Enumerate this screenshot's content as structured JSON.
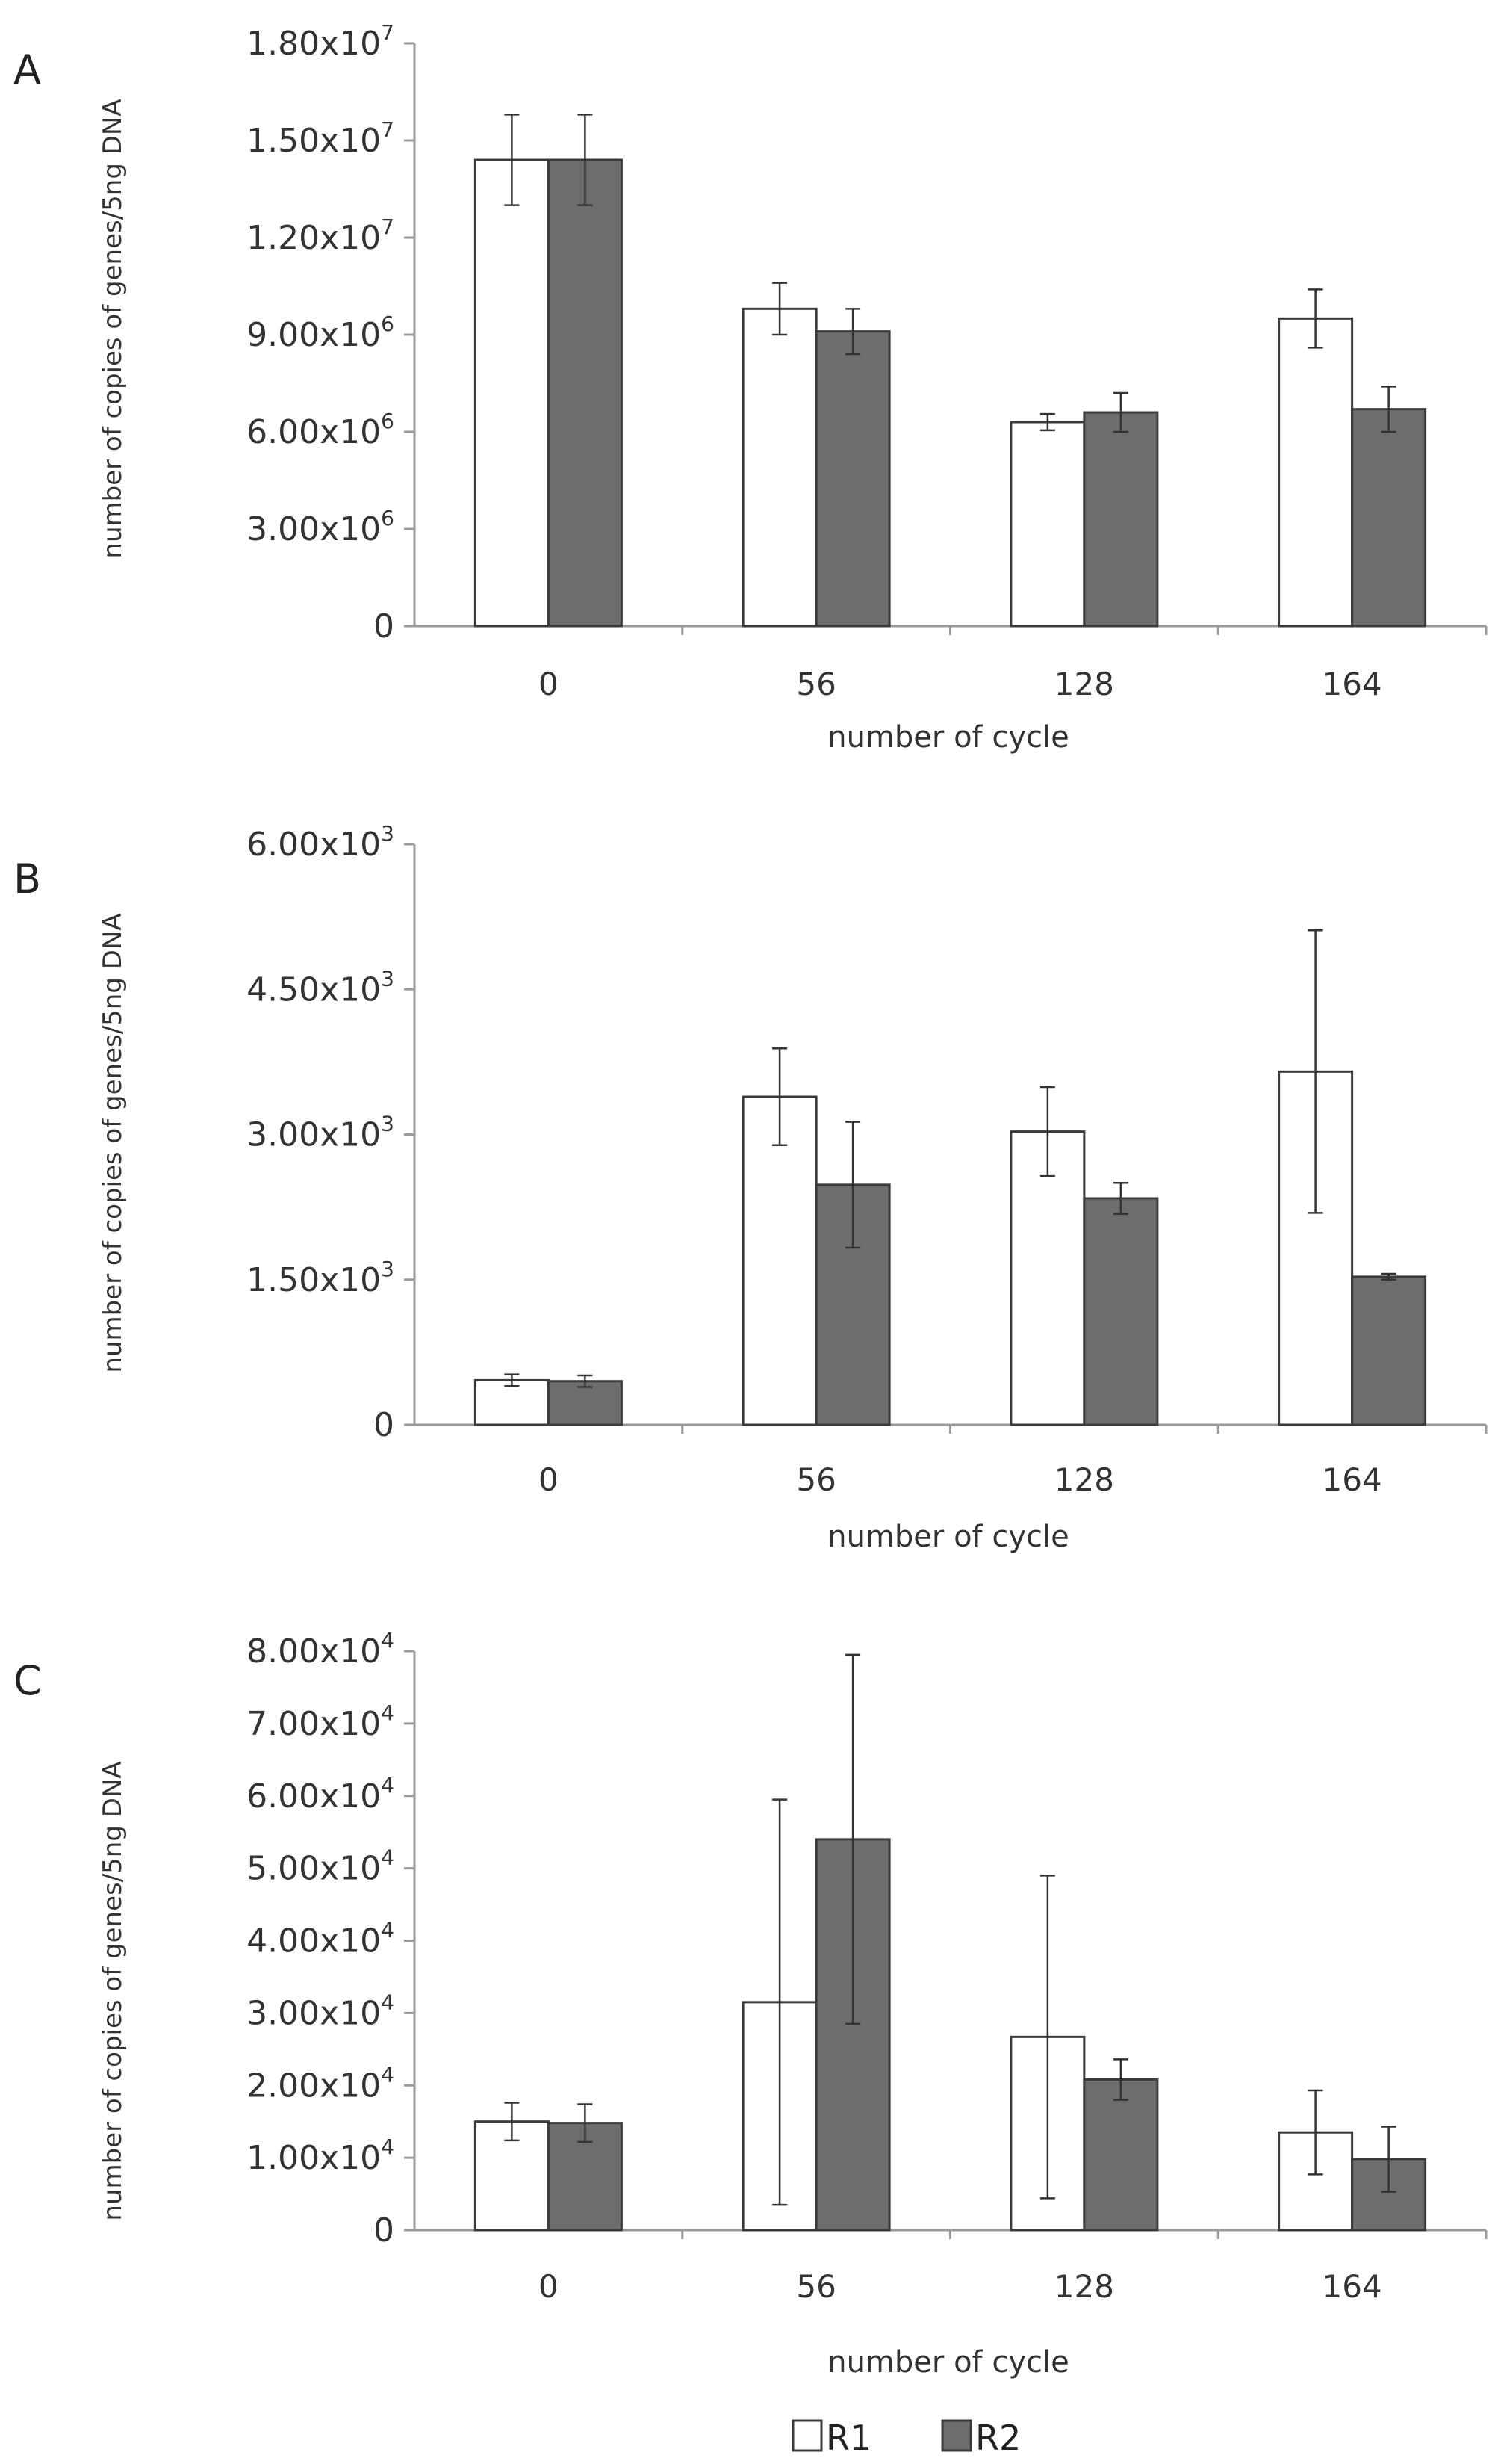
{
  "colors": {
    "r1_fill": "#ffffff",
    "r2_fill": "#6d6d6d",
    "bar_stroke": "#3a3a3a",
    "axis": "#9a9a9a",
    "error_bar": "#333333"
  },
  "legend": {
    "r1_label": "R1",
    "r2_label": "R2"
  },
  "chart_data": [
    {
      "type": "bar",
      "panel": "A",
      "categories": [
        "0",
        "56",
        "128",
        "164"
      ],
      "xlabel": "number of cycle",
      "ylabel": "number of copies of genes/5ng DNA",
      "ylim": [
        0,
        18000000
      ],
      "ytick_values": [
        0,
        3000000,
        6000000,
        9000000,
        12000000,
        15000000,
        18000000
      ],
      "ytick_labels": [
        {
          "base": "0",
          "exp": ""
        },
        {
          "base": "3.00x10",
          "exp": "6"
        },
        {
          "base": "6.00x10",
          "exp": "6"
        },
        {
          "base": "9.00x10",
          "exp": "6"
        },
        {
          "base": "1.20x10",
          "exp": "7"
        },
        {
          "base": "1.50x10",
          "exp": "7"
        },
        {
          "base": "1.80x10",
          "exp": "7"
        }
      ],
      "series": [
        {
          "name": "R1",
          "values": [
            14400000,
            9800000,
            6300000,
            9500000
          ],
          "errors": [
            1400000,
            800000,
            250000,
            900000
          ]
        },
        {
          "name": "R2",
          "values": [
            14400000,
            9100000,
            6600000,
            6700000
          ],
          "errors": [
            1400000,
            700000,
            600000,
            700000
          ]
        }
      ]
    },
    {
      "type": "bar",
      "panel": "B",
      "categories": [
        "0",
        "56",
        "128",
        "164"
      ],
      "xlabel": "number of cycle",
      "ylabel": "number of copies of genes/5ng DNA",
      "ylim": [
        0,
        6000
      ],
      "ytick_values": [
        0,
        1500,
        3000,
        4500,
        6000
      ],
      "ytick_labels": [
        {
          "base": "0",
          "exp": ""
        },
        {
          "base": "1.50x10",
          "exp": "3"
        },
        {
          "base": "3.00x10",
          "exp": "3"
        },
        {
          "base": "4.50x10",
          "exp": "3"
        },
        {
          "base": "6.00x10",
          "exp": "3"
        }
      ],
      "series": [
        {
          "name": "R1",
          "values": [
            460,
            3390,
            3030,
            3650
          ],
          "errors": [
            60,
            500,
            460,
            1460
          ]
        },
        {
          "name": "R2",
          "values": [
            450,
            2480,
            2340,
            1530
          ],
          "errors": [
            60,
            650,
            160,
            30
          ]
        }
      ]
    },
    {
      "type": "bar",
      "panel": "C",
      "categories": [
        "0",
        "56",
        "128",
        "164"
      ],
      "xlabel": "number of cycle",
      "ylabel": "number of copies of genes/5ng DNA",
      "ylim": [
        0,
        80000
      ],
      "ytick_values": [
        0,
        10000,
        20000,
        30000,
        40000,
        50000,
        60000,
        70000,
        80000
      ],
      "ytick_labels": [
        {
          "base": "0",
          "exp": ""
        },
        {
          "base": "1.00x10",
          "exp": "4"
        },
        {
          "base": "2.00x10",
          "exp": "4"
        },
        {
          "base": "3.00x10",
          "exp": "4"
        },
        {
          "base": "4.00x10",
          "exp": "4"
        },
        {
          "base": "5.00x10",
          "exp": "4"
        },
        {
          "base": "6.00x10",
          "exp": "4"
        },
        {
          "base": "7.00x10",
          "exp": "4"
        },
        {
          "base": "8.00x10",
          "exp": "4"
        }
      ],
      "series": [
        {
          "name": "R1",
          "values": [
            15000,
            31500,
            26700,
            13500
          ],
          "errors": [
            2600,
            28000,
            22300,
            5800
          ]
        },
        {
          "name": "R2",
          "values": [
            14800,
            54000,
            20800,
            9800
          ],
          "errors": [
            2600,
            25500,
            2800,
            4500
          ]
        }
      ]
    }
  ]
}
